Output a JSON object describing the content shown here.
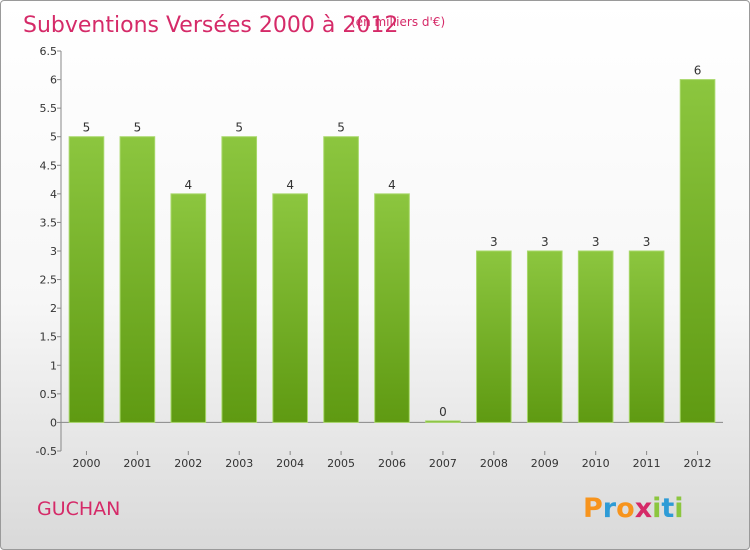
{
  "chart_data": {
    "type": "bar",
    "title": "Subventions Versées 2000 à 2012",
    "subtitle": "(en milliers d'€)",
    "xlabel": "",
    "ylabel": "",
    "categories": [
      "2000",
      "2001",
      "2002",
      "2003",
      "2004",
      "2005",
      "2006",
      "2007",
      "2008",
      "2009",
      "2010",
      "2011",
      "2012"
    ],
    "values": [
      5,
      5,
      4,
      5,
      4,
      5,
      4,
      0,
      3,
      3,
      3,
      3,
      6
    ],
    "ylim": [
      -0.5,
      6.5
    ],
    "yticks": [
      "-0.5",
      "0",
      "0.5",
      "1",
      "1.5",
      "2",
      "2.5",
      "3",
      "3.5",
      "4",
      "4.5",
      "5",
      "5.5",
      "6",
      "6.5"
    ],
    "grid": false,
    "legend": "none",
    "bar_color": "#8cc63f",
    "bar_color_dark": "#5f9a12"
  },
  "footer": {
    "commune": "GUCHAN",
    "logo": "Proxiti"
  },
  "colors": {
    "title": "#d52a68",
    "logo_letters": [
      "#f7941d",
      "#2e9bd6",
      "#f7941d",
      "#d52a68",
      "#8cc63f",
      "#2e9bd6",
      "#8cc63f"
    ]
  }
}
